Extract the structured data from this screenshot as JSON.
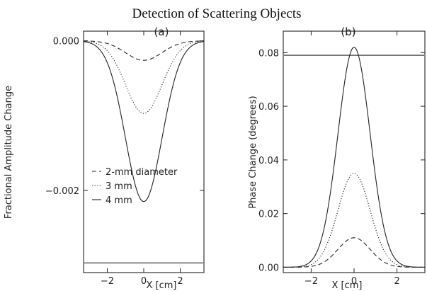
{
  "title": "Detection of Scattering Objects",
  "chart_data": [
    {
      "type": "line",
      "panel_label": "(a)",
      "xlabel": "X [cm]",
      "ylabel": "Fractional Amplitude Change",
      "xlim": [
        -3.3,
        3.3
      ],
      "ylim": [
        -0.0031,
        0.00013
      ],
      "x_ticks": [
        -2,
        0,
        2
      ],
      "y_ticks": [
        0.0,
        -0.002
      ],
      "y_tick_labels": [
        "0.000",
        "-0.002"
      ],
      "gaussian_sigma": 1.0,
      "series": [
        {
          "name": "2-mm diameter",
          "style": "dashed",
          "peak_value": -0.00026
        },
        {
          "name": "3 mm",
          "style": "dotted",
          "peak_value": -0.00097
        },
        {
          "name": "4 mm",
          "style": "solid",
          "peak_value": -0.00215
        }
      ],
      "reference_line": -0.00297,
      "legend_location": "lower-left"
    },
    {
      "type": "line",
      "panel_label": "(b)",
      "xlabel": "X [cm]",
      "ylabel": "Phase Change (degrees)",
      "xlim": [
        -3.3,
        3.3
      ],
      "ylim": [
        -0.002,
        0.088
      ],
      "x_ticks": [
        -2,
        0,
        2
      ],
      "y_ticks": [
        0.0,
        0.02,
        0.04,
        0.06,
        0.08
      ],
      "y_tick_labels": [
        "0.00",
        "0.02",
        "0.04",
        "0.06",
        "0.08"
      ],
      "gaussian_sigma": 0.75,
      "series": [
        {
          "name": "2-mm diameter",
          "style": "dashed",
          "peak_value": 0.011
        },
        {
          "name": "3 mm",
          "style": "dotted",
          "peak_value": 0.035
        },
        {
          "name": "4 mm",
          "style": "solid",
          "peak_value": 0.082
        }
      ],
      "reference_line": 0.079
    }
  ]
}
